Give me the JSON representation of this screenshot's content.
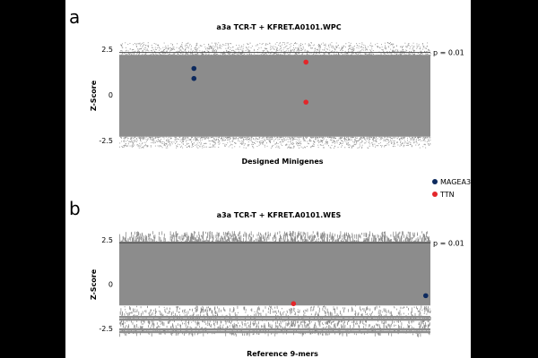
{
  "colors": {
    "background_points": "#8c8c8c",
    "MAGEA3": "#0d2a5e",
    "TTN": "#e3262a",
    "threshold_line": "#444444"
  },
  "legend": {
    "placement": "right",
    "entries": [
      {
        "name": "MAGEA3",
        "color": "#0d2a5e"
      },
      {
        "name": "TTN",
        "color": "#e3262a"
      }
    ]
  },
  "chart_data": [
    {
      "panel": "a",
      "type": "scatter",
      "title": "a3a TCR-T + KFRET.A0101.WPC",
      "xlabel": "Designed Minigenes",
      "ylabel": "Z-Score",
      "yticks": [
        2.5,
        0,
        -2.5
      ],
      "ytick_labels": [
        "2.5",
        "0",
        "-2.5"
      ],
      "ylim": [
        -3.1,
        3.0
      ],
      "threshold": {
        "value": 2.33,
        "label": "p = 0.01"
      },
      "background": {
        "description": "dense gray cloud of all designed minigenes",
        "ymin": -2.9,
        "ymax": 2.9,
        "core_min": -2.3,
        "core_max": 2.2
      },
      "series": [
        {
          "name": "MAGEA3",
          "color": "#0d2a5e",
          "points": [
            {
              "x": 0.24,
              "y": 1.45
            },
            {
              "x": 0.24,
              "y": 0.9
            }
          ]
        },
        {
          "name": "TTN",
          "color": "#e3262a",
          "points": [
            {
              "x": 0.6,
              "y": 1.8
            },
            {
              "x": 0.6,
              "y": -0.4
            }
          ]
        }
      ]
    },
    {
      "panel": "b",
      "type": "scatter",
      "title": "a3a TCR-T + KFRET.A0101.WES",
      "xlabel": "Reference 9-mers",
      "ylabel": "Z-Score",
      "yticks": [
        2.5,
        0,
        -2.5
      ],
      "ytick_labels": [
        "2.5",
        "0",
        "-2.5"
      ],
      "ylim": [
        -2.9,
        3.1
      ],
      "threshold": {
        "value": 2.33,
        "label": "p = 0.01"
      },
      "background": {
        "description": "dense gray band of reference 9-mers",
        "ymin": -2.8,
        "ymax": 3.0,
        "core_min": -1.2,
        "core_max": 2.4
      },
      "series": [
        {
          "name": "MAGEA3",
          "color": "#0d2a5e",
          "points": [
            {
              "x": 0.985,
              "y": -0.65
            }
          ]
        },
        {
          "name": "TTN",
          "color": "#e3262a",
          "points": [
            {
              "x": 0.56,
              "y": -1.1
            }
          ]
        }
      ]
    }
  ]
}
